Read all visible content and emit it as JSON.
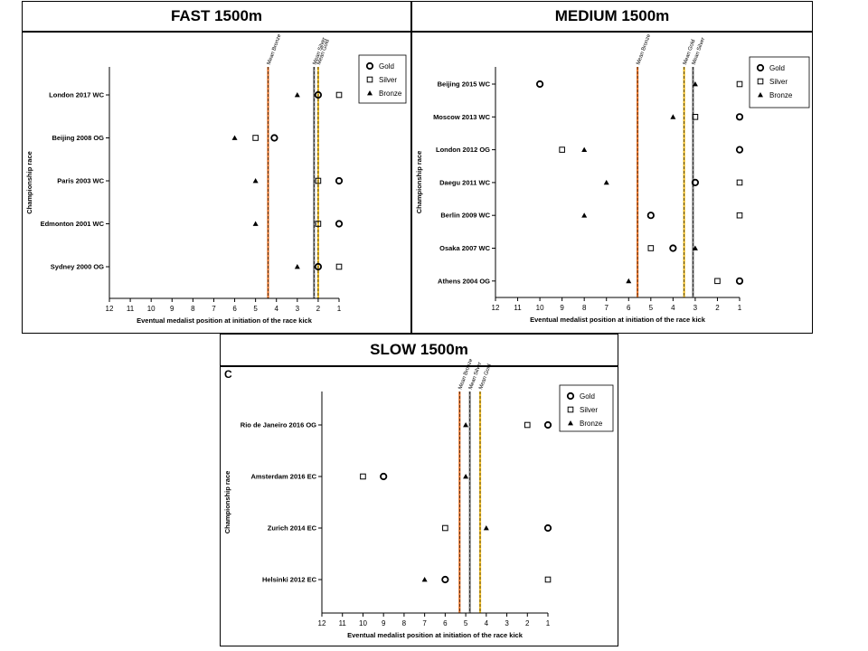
{
  "panels": [
    {
      "title": "FAST 1500m",
      "letter": ""
    },
    {
      "title": "MEDIUM 1500m",
      "letter": ""
    },
    {
      "title": "SLOW 1500m",
      "letter": "C"
    }
  ],
  "chart_data": [
    {
      "type": "scatter",
      "title": "FAST 1500m",
      "xlabel": "Eventual medalist position at initiation of the race kick",
      "ylabel": "Championship race",
      "xlim": [
        12,
        1
      ],
      "xticks": [
        12,
        11,
        10,
        9,
        8,
        7,
        6,
        5,
        4,
        3,
        2,
        1
      ],
      "categories": [
        "London 2017 WC",
        "Beijing 2008 OG",
        "Paris 2003 WC",
        "Edmonton 2001 WC",
        "Sydney 2000 OG"
      ],
      "series": [
        {
          "name": "Gold",
          "marker": "circle",
          "values": [
            2,
            4.1,
            1,
            1,
            2
          ]
        },
        {
          "name": "Silver",
          "marker": "square",
          "values": [
            1,
            5,
            2,
            2,
            1
          ]
        },
        {
          "name": "Bronze",
          "marker": "triangle",
          "values": [
            3,
            6,
            5,
            5,
            3
          ]
        }
      ],
      "reference_lines": [
        {
          "label": "Mean Bronze",
          "value": 4.4,
          "color": "#e8772e"
        },
        {
          "label": "Mean Silver",
          "value": 2.2,
          "color": "#7f7f7f"
        },
        {
          "label": "Mean Gold",
          "value": 2.0,
          "color": "#f2c12e"
        }
      ],
      "legend_position": "top-right",
      "grid": false
    },
    {
      "type": "scatter",
      "title": "MEDIUM 1500m",
      "xlabel": "Eventual medalist position at initiation of the race kick",
      "ylabel": "Championship race",
      "xlim": [
        12,
        1
      ],
      "xticks": [
        12,
        11,
        10,
        9,
        8,
        7,
        6,
        5,
        4,
        3,
        2,
        1
      ],
      "categories": [
        "Beijing 2015 WC",
        "Moscow 2013 WC",
        "London 2012 OG",
        "Daegu 2011 WC",
        "Berlin 2009 WC",
        "Osaka 2007 WC",
        "Athens 2004 OG"
      ],
      "series": [
        {
          "name": "Gold",
          "marker": "circle",
          "values": [
            10,
            1,
            1,
            3,
            5,
            4,
            1
          ]
        },
        {
          "name": "Silver",
          "marker": "square",
          "values": [
            1,
            3,
            9,
            1,
            1,
            5,
            2
          ]
        },
        {
          "name": "Bronze",
          "marker": "triangle",
          "values": [
            3,
            4,
            8,
            7,
            8,
            3,
            6
          ]
        }
      ],
      "reference_lines": [
        {
          "label": "Mean Bronze",
          "value": 5.6,
          "color": "#e8772e"
        },
        {
          "label": "Mean Gold",
          "value": 3.5,
          "color": "#f2c12e"
        },
        {
          "label": "Mean Silver",
          "value": 3.1,
          "color": "#7f7f7f"
        }
      ],
      "legend_position": "top-right",
      "grid": false
    },
    {
      "type": "scatter",
      "title": "SLOW 1500m",
      "xlabel": "Eventual medalist position at initiation of the race kick",
      "ylabel": "Championship race",
      "xlim": [
        12,
        1
      ],
      "xticks": [
        12,
        11,
        10,
        9,
        8,
        7,
        6,
        5,
        4,
        3,
        2,
        1
      ],
      "categories": [
        "Rio de Janeiro 2016 OG",
        "Amsterdam 2016 EC",
        "Zurich 2014 EC",
        "Helsinki 2012 EC"
      ],
      "series": [
        {
          "name": "Gold",
          "marker": "circle",
          "values": [
            1,
            9,
            1,
            6
          ]
        },
        {
          "name": "Silver",
          "marker": "square",
          "values": [
            2,
            10,
            6,
            1
          ]
        },
        {
          "name": "Bronze",
          "marker": "triangle",
          "values": [
            5,
            5,
            4,
            7
          ]
        }
      ],
      "reference_lines": [
        {
          "label": "Mean Bronze",
          "value": 5.3,
          "color": "#e8772e"
        },
        {
          "label": "Mean Silver",
          "value": 4.8,
          "color": "#7f7f7f"
        },
        {
          "label": "Mean Gold",
          "value": 4.3,
          "color": "#f2c12e"
        }
      ],
      "legend_position": "top-right",
      "grid": false
    }
  ]
}
